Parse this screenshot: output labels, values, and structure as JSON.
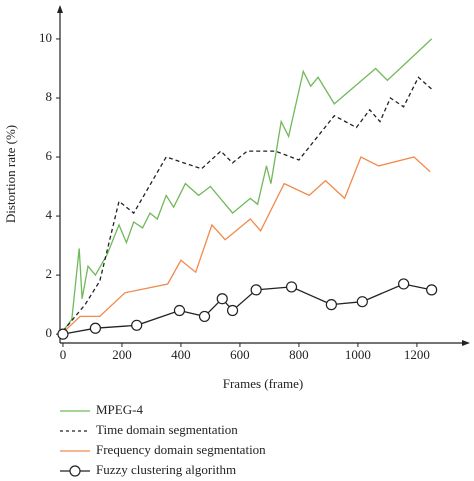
{
  "chart_data": {
    "type": "line",
    "x_label": "Frames (frame)",
    "y_label": "Distortion rate (%)",
    "xlim": [
      -10,
      1380
    ],
    "ylim": [
      -0.3,
      11.15
    ],
    "xticks": [
      0,
      200,
      400,
      600,
      800,
      1000,
      1200
    ],
    "yticks": [
      0,
      2,
      4,
      6,
      8,
      10
    ],
    "legend": "bottom",
    "series": [
      {
        "name": "MPEG-4",
        "color": "#70b95a",
        "style": "solid",
        "x": [
          0,
          30,
          55,
          65,
          85,
          110,
          150,
          190,
          215,
          240,
          270,
          295,
          320,
          350,
          375,
          415,
          460,
          500,
          575,
          635,
          660,
          690,
          705,
          740,
          765,
          815,
          840,
          865,
          920,
          1060,
          1100,
          1250
        ],
        "values": [
          0.1,
          0.5,
          2.9,
          1.2,
          2.3,
          2.0,
          2.7,
          3.7,
          3.1,
          3.8,
          3.6,
          4.1,
          3.9,
          4.7,
          4.3,
          5.1,
          4.7,
          5.0,
          4.1,
          4.6,
          4.4,
          5.7,
          5.1,
          7.2,
          6.7,
          8.9,
          8.4,
          8.7,
          7.8,
          9.0,
          8.6,
          10.0
        ]
      },
      {
        "name": "Time domain segmentation",
        "color": "#222222",
        "style": "dashed",
        "x": [
          0,
          75,
          125,
          190,
          240,
          350,
          470,
          535,
          575,
          625,
          720,
          800,
          920,
          995,
          1040,
          1075,
          1110,
          1155,
          1205,
          1250
        ],
        "values": [
          0.1,
          1.0,
          1.8,
          4.5,
          4.1,
          6.0,
          5.6,
          6.2,
          5.8,
          6.2,
          6.2,
          5.9,
          7.4,
          7.0,
          7.6,
          7.2,
          8.0,
          7.7,
          8.7,
          8.3
        ]
      },
      {
        "name": "Frequency domain segmentation",
        "color": "#f08a4b",
        "style": "solid",
        "x": [
          0,
          58,
          125,
          210,
          355,
          400,
          450,
          505,
          550,
          635,
          670,
          750,
          835,
          890,
          955,
          1010,
          1070,
          1190,
          1245
        ],
        "values": [
          0.05,
          0.6,
          0.6,
          1.4,
          1.7,
          2.5,
          2.1,
          3.7,
          3.2,
          3.9,
          3.5,
          5.1,
          4.7,
          5.2,
          4.6,
          6.0,
          5.7,
          6.0,
          5.5
        ]
      },
      {
        "name": "Fuzzy clustering algorithm",
        "color": "#222222",
        "style": "solid",
        "marker": "circle",
        "x": [
          0,
          110,
          250,
          395,
          480,
          540,
          575,
          655,
          775,
          910,
          1015,
          1155,
          1250
        ],
        "values": [
          0.0,
          0.2,
          0.3,
          0.8,
          0.6,
          1.2,
          0.8,
          1.5,
          1.6,
          1.0,
          1.1,
          1.7,
          1.5
        ]
      }
    ]
  }
}
